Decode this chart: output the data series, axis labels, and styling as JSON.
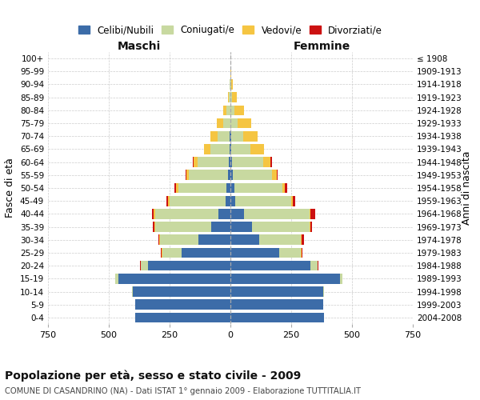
{
  "age_groups": [
    "0-4",
    "5-9",
    "10-14",
    "15-19",
    "20-24",
    "25-29",
    "30-34",
    "35-39",
    "40-44",
    "45-49",
    "50-54",
    "55-59",
    "60-64",
    "65-69",
    "70-74",
    "75-79",
    "80-84",
    "85-89",
    "90-94",
    "95-99",
    "100+"
  ],
  "birth_years": [
    "2004-2008",
    "1999-2003",
    "1994-1998",
    "1989-1993",
    "1984-1988",
    "1979-1983",
    "1974-1978",
    "1969-1973",
    "1964-1968",
    "1959-1963",
    "1954-1958",
    "1949-1953",
    "1944-1948",
    "1939-1943",
    "1934-1938",
    "1929-1933",
    "1924-1928",
    "1919-1923",
    "1914-1918",
    "1909-1913",
    "≤ 1908"
  ],
  "maschi": {
    "celibi": [
      390,
      390,
      400,
      460,
      340,
      200,
      130,
      80,
      50,
      20,
      15,
      10,
      5,
      2,
      2,
      0,
      0,
      0,
      0,
      0,
      0
    ],
    "coniugati": [
      0,
      2,
      5,
      15,
      30,
      80,
      160,
      230,
      260,
      230,
      200,
      160,
      130,
      80,
      50,
      30,
      15,
      5,
      2,
      0,
      0
    ],
    "vedovi": [
      0,
      0,
      0,
      0,
      0,
      2,
      2,
      3,
      5,
      5,
      8,
      10,
      15,
      25,
      30,
      25,
      15,
      5,
      2,
      0,
      0
    ],
    "divorziati": [
      0,
      0,
      0,
      0,
      2,
      3,
      5,
      5,
      8,
      8,
      8,
      5,
      5,
      0,
      0,
      0,
      0,
      0,
      0,
      0,
      0
    ]
  },
  "femmine": {
    "nubili": [
      385,
      380,
      380,
      450,
      330,
      200,
      120,
      90,
      55,
      20,
      15,
      10,
      5,
      2,
      2,
      0,
      0,
      0,
      0,
      0,
      0
    ],
    "coniugate": [
      0,
      2,
      5,
      10,
      30,
      90,
      170,
      235,
      270,
      230,
      200,
      160,
      130,
      80,
      50,
      30,
      15,
      5,
      2,
      0,
      0
    ],
    "vedove": [
      0,
      0,
      0,
      0,
      0,
      2,
      2,
      3,
      5,
      8,
      10,
      20,
      30,
      55,
      60,
      55,
      40,
      20,
      8,
      2,
      0
    ],
    "divorziate": [
      0,
      0,
      0,
      0,
      2,
      3,
      10,
      8,
      20,
      8,
      8,
      5,
      5,
      0,
      0,
      0,
      0,
      0,
      0,
      0,
      0
    ]
  },
  "colors": {
    "celibi": "#3c6ca8",
    "coniugati": "#c8d9a0",
    "vedovi": "#f5c542",
    "divorziati": "#cc1111"
  },
  "xlim": 750,
  "xticks": [
    -750,
    -500,
    -250,
    0,
    250,
    500,
    750
  ],
  "maschi_label": "Maschi",
  "femmine_label": "Femmine",
  "ylabel_left": "Fasce di età",
  "ylabel_right": "Anni di nascita",
  "title": "Popolazione per età, sesso e stato civile - 2009",
  "subtitle": "COMUNE DI CASANDRINO (NA) - Dati ISTAT 1° gennaio 2009 - Elaborazione TUTTITALIA.IT",
  "legend_labels": [
    "Celibi/Nubili",
    "Coniugati/e",
    "Vedovi/e",
    "Divorziati/e"
  ],
  "legend_colors": [
    "#3c6ca8",
    "#c8d9a0",
    "#f5c542",
    "#cc1111"
  ],
  "bg_color": "#ffffff",
  "grid_color": "#cccccc"
}
